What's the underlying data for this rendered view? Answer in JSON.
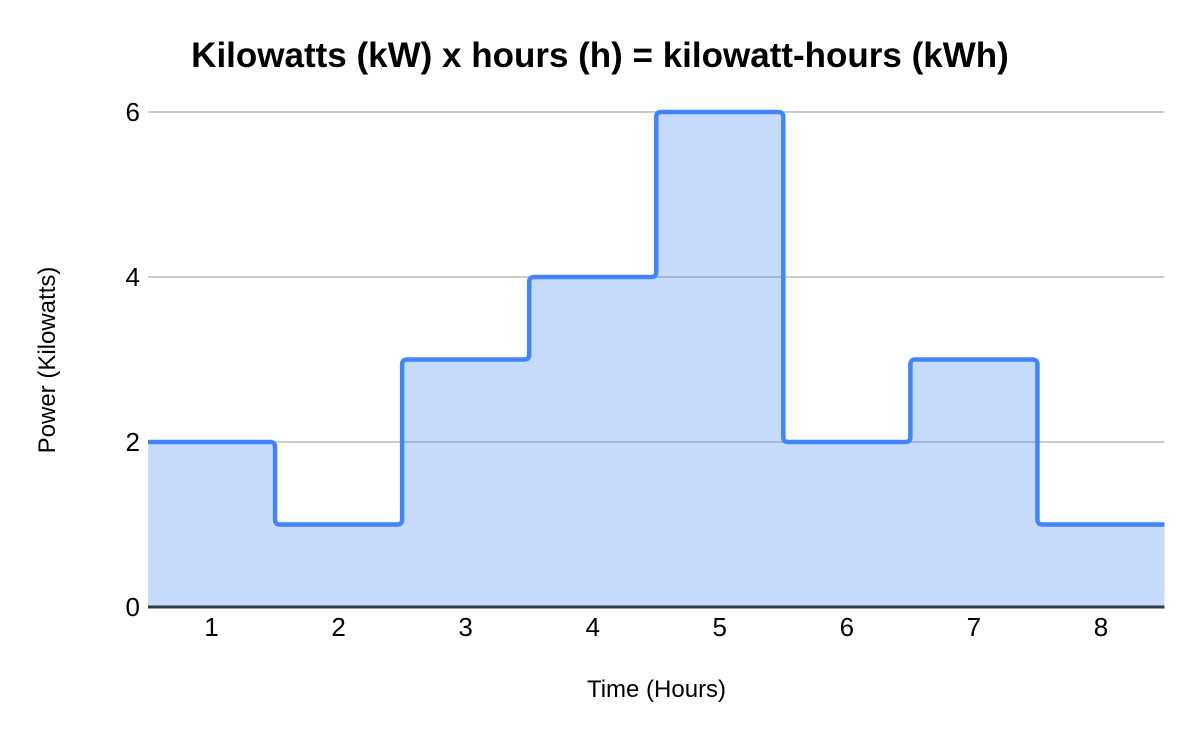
{
  "chart_data": {
    "type": "area",
    "subtype": "step",
    "title": "Kilowatts (kW) x hours (h) = kilowatt-hours (kWh)",
    "xlabel": "Time (Hours)",
    "ylabel": "Power (Kilowatts)",
    "categories": [
      1,
      2,
      3,
      4,
      5,
      6,
      7,
      8
    ],
    "series": [
      {
        "name": "Power (Kilowatts)",
        "values": [
          2,
          1,
          3,
          4,
          6,
          2,
          3,
          1
        ]
      }
    ],
    "x_range": [
      0.5,
      8.5
    ],
    "ylim": [
      0,
      6
    ],
    "y_ticks": [
      0,
      2,
      4,
      6
    ],
    "grid": true,
    "legend": "none",
    "colors": {
      "line": "#4285f4",
      "fill": "rgba(66,133,244,0.30)",
      "gridline": "#cccccc",
      "axis_line": "#323a48",
      "text": "#000000",
      "background": "#ffffff"
    }
  }
}
